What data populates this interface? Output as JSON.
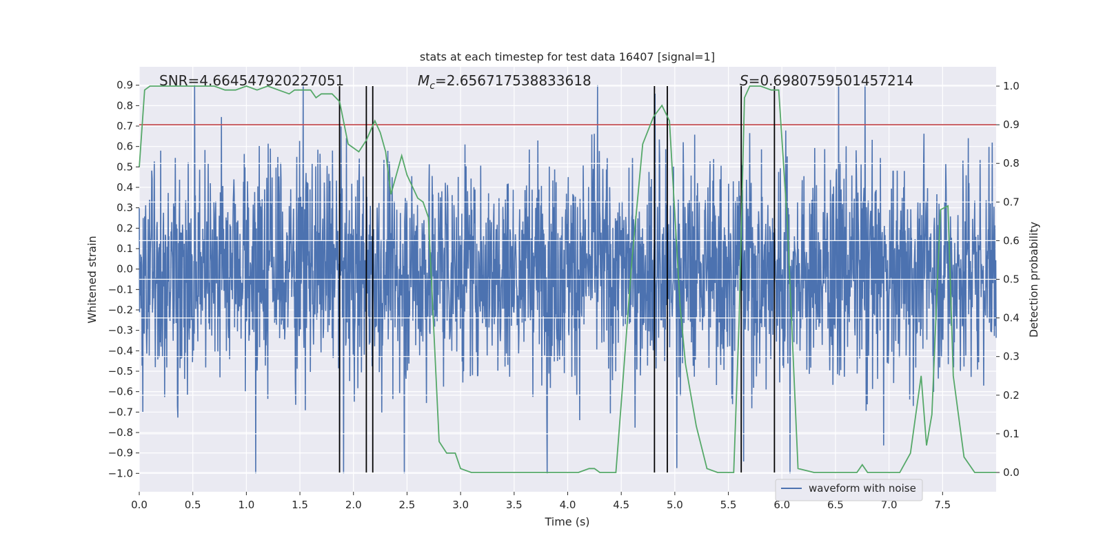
{
  "chart_data": {
    "type": "line",
    "title": "stats at each timestep for test data 16407 [signal=1]",
    "xlabel": "Time (s)",
    "ylabel_left": "Whitened strain",
    "ylabel_right": "Detection probability",
    "xlim": [
      0.0,
      8.0
    ],
    "ylim_left": [
      -1.09,
      0.99
    ],
    "ylim_right": [
      -0.05,
      1.05
    ],
    "x_ticks": [
      "0.0",
      "0.5",
      "1.0",
      "1.5",
      "2.0",
      "2.5",
      "3.0",
      "3.5",
      "4.0",
      "4.5",
      "5.0",
      "5.5",
      "6.0",
      "6.5",
      "7.0",
      "7.5"
    ],
    "y_ticks_left": [
      "0.9",
      "0.8",
      "0.7",
      "0.6",
      "0.5",
      "0.4",
      "0.3",
      "0.2",
      "0.1",
      "0.0",
      "-0.1",
      "-0.2",
      "-0.3",
      "-0.4",
      "-0.5",
      "-0.6",
      "-0.7",
      "-0.8",
      "-0.9",
      "-1.0"
    ],
    "y_ticks_right": [
      "1.0",
      "0.9",
      "0.8",
      "0.7",
      "0.6",
      "0.5",
      "0.4",
      "0.3",
      "0.2",
      "0.1",
      "0.0"
    ],
    "annotations": {
      "snr": "SNR=4.664547920227051",
      "mc_symbol": "M",
      "mc_sub": "c",
      "mc_value": "=2.656717538833618",
      "s_symbol": "S",
      "s_value": "=0.6980759501457214"
    },
    "legend": {
      "label": "waveform with noise",
      "location": "lower right"
    },
    "threshold": {
      "axis": "right",
      "value": 0.9,
      "color": "#c44e52"
    },
    "event_lines": [
      1.87,
      2.12,
      2.18,
      4.81,
      4.93,
      5.62,
      5.93
    ],
    "waveform": {
      "name": "waveform with noise",
      "color": "#4c72b0",
      "x_range": [
        0.0,
        8.0
      ],
      "typical_amplitude": 0.42,
      "max_value": 0.9,
      "min_value": -1.0
    },
    "detection_probability": {
      "name": "detection probability",
      "color": "#55a868",
      "x": [
        0.0,
        0.05,
        0.1,
        0.3,
        0.5,
        0.7,
        0.8,
        0.9,
        1.0,
        1.1,
        1.2,
        1.3,
        1.4,
        1.45,
        1.5,
        1.6,
        1.65,
        1.7,
        1.8,
        1.87,
        1.95,
        2.05,
        2.12,
        2.2,
        2.25,
        2.3,
        2.35,
        2.45,
        2.5,
        2.6,
        2.65,
        2.7,
        2.8,
        2.87,
        2.95,
        3.0,
        3.1,
        3.3,
        3.5,
        3.7,
        3.9,
        4.0,
        4.1,
        4.2,
        4.25,
        4.3,
        4.4,
        4.45,
        4.5,
        4.6,
        4.7,
        4.8,
        4.88,
        4.95,
        5.05,
        5.1,
        5.2,
        5.3,
        5.4,
        5.55,
        5.6,
        5.65,
        5.7,
        5.8,
        5.9,
        5.97,
        6.05,
        6.15,
        6.3,
        6.5,
        6.7,
        6.75,
        6.8,
        7.0,
        7.1,
        7.2,
        7.3,
        7.35,
        7.4,
        7.48,
        7.55,
        7.6,
        7.7,
        7.8,
        8.0
      ],
      "values": [
        0.79,
        0.99,
        1.0,
        1.0,
        1.0,
        1.0,
        0.99,
        0.99,
        1.0,
        0.99,
        1.0,
        0.99,
        0.98,
        0.99,
        0.99,
        0.99,
        0.97,
        0.98,
        0.98,
        0.96,
        0.85,
        0.83,
        0.86,
        0.91,
        0.88,
        0.83,
        0.72,
        0.82,
        0.77,
        0.71,
        0.7,
        0.66,
        0.08,
        0.05,
        0.05,
        0.01,
        0.0,
        0.0,
        0.0,
        0.0,
        0.0,
        0.0,
        0.0,
        0.01,
        0.01,
        0.0,
        0.0,
        0.0,
        0.18,
        0.55,
        0.85,
        0.92,
        0.95,
        0.91,
        0.43,
        0.28,
        0.12,
        0.01,
        0.0,
        0.0,
        0.39,
        0.97,
        1.0,
        1.0,
        0.99,
        0.99,
        0.65,
        0.01,
        0.0,
        0.0,
        0.0,
        0.02,
        0.0,
        0.0,
        0.0,
        0.05,
        0.25,
        0.07,
        0.15,
        0.68,
        0.69,
        0.25,
        0.04,
        0.0,
        0.0
      ]
    }
  }
}
